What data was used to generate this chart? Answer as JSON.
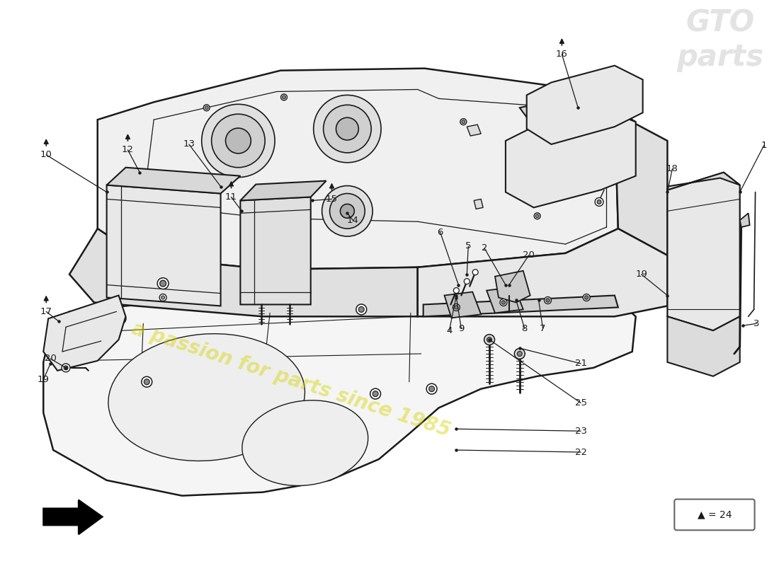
{
  "bg_color": "#ffffff",
  "lc": "#1a1a1a",
  "fill_tank": "#f0f0f0",
  "fill_tank_side": "#e0e0e0",
  "fill_panel": "#e8e8e8",
  "fill_plate": "#f5f5f5",
  "fill_cover": "#e8e8e8",
  "fill_box": "#e0e0e0",
  "watermark_text": "a passion for parts since 1985",
  "watermark_color": "#d4d400",
  "watermark_alpha": 0.45,
  "legend_text": "▲ = 24"
}
